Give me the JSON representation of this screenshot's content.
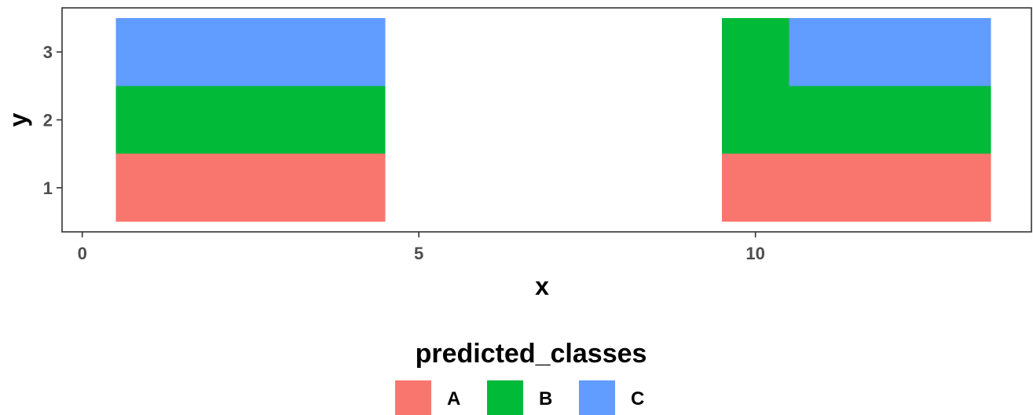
{
  "chart_data": {
    "type": "heatmap",
    "xlabel": "x",
    "ylabel": "y",
    "xlim": [
      -0.3,
      14.1
    ],
    "ylim": [
      0.35,
      3.65
    ],
    "x_ticks": [
      0,
      5,
      10
    ],
    "y_ticks": [
      1,
      2,
      3
    ],
    "grid": false,
    "legend": {
      "title": "predicted_classes",
      "position": "bottom",
      "entries": [
        {
          "label": "A",
          "color": "#F8766D"
        },
        {
          "label": "B",
          "color": "#00BA38"
        },
        {
          "label": "C",
          "color": "#619CFF"
        }
      ]
    },
    "colors": {
      "A": "#F8766D",
      "B": "#00BA38",
      "C": "#619CFF"
    },
    "tiles": [
      {
        "x0": 0.5,
        "x1": 4.5,
        "y": 1,
        "class": "A"
      },
      {
        "x0": 0.5,
        "x1": 4.5,
        "y": 2,
        "class": "B"
      },
      {
        "x0": 0.5,
        "x1": 4.5,
        "y": 3,
        "class": "C"
      },
      {
        "x0": 9.5,
        "x1": 13.5,
        "y": 1,
        "class": "A"
      },
      {
        "x0": 9.5,
        "x1": 13.5,
        "y": 2,
        "class": "B"
      },
      {
        "x0": 9.5,
        "x1": 10.5,
        "y": 3,
        "class": "B"
      },
      {
        "x0": 10.5,
        "x1": 13.5,
        "y": 3,
        "class": "C"
      }
    ]
  }
}
